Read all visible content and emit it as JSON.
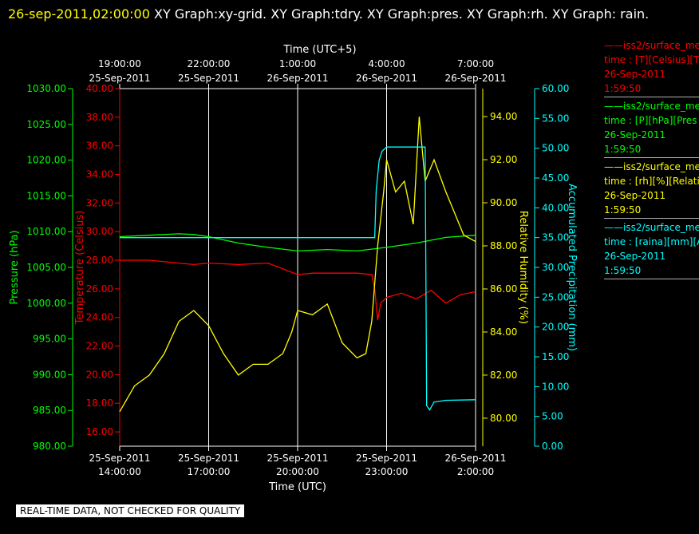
{
  "header": {
    "timestamp": "26-sep-2011,02:00:00",
    "graphs": "XY Graph:xy-grid.  XY Graph:tdry.  XY Graph:pres.  XY Graph:rh.  XY Graph: rain."
  },
  "notice": "REAL-TIME DATA, NOT CHECKED FOR QUALITY",
  "legend": [
    {
      "color": "#ff0000",
      "name": "iss2/surface_me",
      "field": "time : [T][Celsius][T",
      "date": "26-Sep-2011",
      "time": "1:59:50"
    },
    {
      "color": "#00ff00",
      "name": "iss2/surface_me",
      "field": "time : [P][hPa][Pres",
      "date": "26-Sep-2011",
      "time": "1:59:50"
    },
    {
      "color": "#ffff00",
      "name": "iss2/surface_me",
      "field": "time : [rh][%][Relati",
      "date": "26-Sep-2011",
      "time": "1:59:50"
    },
    {
      "color": "#00ffff",
      "name": "iss2/surface_me",
      "field": "time : [raina][mm][A",
      "date": "26-Sep-2011",
      "time": "1:59:50"
    }
  ],
  "chart_data": {
    "type": "line",
    "x_range_hours": [
      14,
      26
    ],
    "grid": true,
    "top_axis": {
      "label": "Time (UTC+5)",
      "ticks": [
        {
          "hour": 14,
          "time": "19:00:00",
          "date": "25-Sep-2011"
        },
        {
          "hour": 17,
          "time": "22:00:00",
          "date": "25-Sep-2011"
        },
        {
          "hour": 20,
          "time": "1:00:00",
          "date": "26-Sep-2011"
        },
        {
          "hour": 23,
          "time": "4:00:00",
          "date": "26-Sep-2011"
        },
        {
          "hour": 26,
          "time": "7:00:00",
          "date": "26-Sep-2011"
        }
      ]
    },
    "bottom_axis": {
      "label": "Time (UTC)",
      "ticks": [
        {
          "hour": 14,
          "date": "25-Sep-2011",
          "time": "14:00:00"
        },
        {
          "hour": 17,
          "date": "25-Sep-2011",
          "time": "17:00:00"
        },
        {
          "hour": 20,
          "date": "25-Sep-2011",
          "time": "20:00:00"
        },
        {
          "hour": 23,
          "date": "25-Sep-2011",
          "time": "23:00:00"
        },
        {
          "hour": 26,
          "date": "26-Sep-2011",
          "time": "2:00:00"
        }
      ]
    },
    "axes": [
      {
        "id": "pres",
        "label": "Pressure (hPa)",
        "color": "#00ff00",
        "range": [
          980,
          1030
        ],
        "ticks": [
          "980.00",
          "985.00",
          "990.00",
          "995.00",
          "1000.00",
          "1005.00",
          "1010.00",
          "1015.00",
          "1020.00",
          "1025.00",
          "1030.00"
        ]
      },
      {
        "id": "temp",
        "label": "Temperature (Celsius)",
        "color": "#ff0000",
        "range": [
          15,
          40
        ],
        "ticks": [
          "16.00",
          "18.00",
          "20.00",
          "22.00",
          "24.00",
          "26.00",
          "28.00",
          "30.00",
          "32.00",
          "34.00",
          "36.00",
          "38.00",
          "40.00"
        ]
      },
      {
        "id": "rh",
        "label": "Relative Humidity (%)",
        "color": "#ffff00",
        "range": [
          78.7,
          95.3
        ],
        "ticks": [
          "80.00",
          "82.00",
          "84.00",
          "86.00",
          "88.00",
          "90.00",
          "92.00",
          "94.00"
        ]
      },
      {
        "id": "rain",
        "label": "Accumulated Precipitation (mm)",
        "color": "#00ffff",
        "range": [
          0,
          60
        ],
        "ticks": [
          "0.00",
          "5.00",
          "10.00",
          "15.00",
          "20.00",
          "25.00",
          "30.00",
          "35.00",
          "40.00",
          "45.00",
          "50.00",
          "55.00",
          "60.00"
        ]
      }
    ],
    "series": [
      {
        "axis": "temp",
        "color": "#ff0000",
        "x": [
          14,
          15,
          16,
          16.5,
          17,
          18,
          19,
          20,
          20.5,
          21,
          22,
          22.5,
          22.6,
          22.7,
          22.8,
          23,
          23.5,
          24,
          24.5,
          25,
          25.5,
          26
        ],
        "y": [
          28.0,
          28.0,
          27.8,
          27.7,
          27.8,
          27.7,
          27.8,
          27.0,
          27.1,
          27.1,
          27.1,
          27.0,
          26.0,
          23.8,
          25.0,
          25.4,
          25.7,
          25.3,
          25.9,
          25.0,
          25.6,
          25.8
        ]
      },
      {
        "axis": "pres",
        "color": "#00ff00",
        "x": [
          14,
          15,
          16,
          16.5,
          17,
          18,
          19,
          20,
          21,
          22,
          23,
          24,
          25,
          26
        ],
        "y": [
          1009.3,
          1009.5,
          1009.7,
          1009.6,
          1009.3,
          1008.4,
          1007.8,
          1007.3,
          1007.5,
          1007.3,
          1007.8,
          1008.4,
          1009.2,
          1009.5
        ]
      },
      {
        "axis": "rh",
        "color": "#ffff00",
        "x": [
          14,
          14.5,
          15,
          15.5,
          16,
          16.5,
          17,
          17.5,
          18,
          18.5,
          19,
          19.5,
          19.8,
          20,
          20.5,
          21,
          21.5,
          22,
          22.3,
          22.5,
          22.7,
          22.9,
          23,
          23.3,
          23.6,
          23.9,
          24.1,
          24.3,
          24.6,
          25,
          25.3,
          25.6,
          26
        ],
        "y": [
          80.3,
          81.5,
          82.0,
          83.0,
          84.5,
          85.0,
          84.3,
          83.0,
          82.0,
          82.5,
          82.5,
          83.0,
          84.0,
          85.0,
          84.8,
          85.3,
          83.5,
          82.8,
          83.0,
          84.5,
          88.0,
          90.5,
          92.0,
          90.5,
          91.0,
          89.0,
          94.0,
          91.0,
          92.0,
          90.5,
          89.5,
          88.5,
          88.2
        ]
      },
      {
        "axis": "rain",
        "color": "#00ffff",
        "x": [
          14,
          22.6,
          22.65,
          22.75,
          22.85,
          23,
          23.5,
          24.3,
          24.35,
          24.45,
          24.6,
          25,
          26
        ],
        "y": [
          35.0,
          35.0,
          43.0,
          48.0,
          49.5,
          50.2,
          50.2,
          50.2,
          6.8,
          6.1,
          7.4,
          7.7,
          7.8
        ]
      }
    ]
  }
}
